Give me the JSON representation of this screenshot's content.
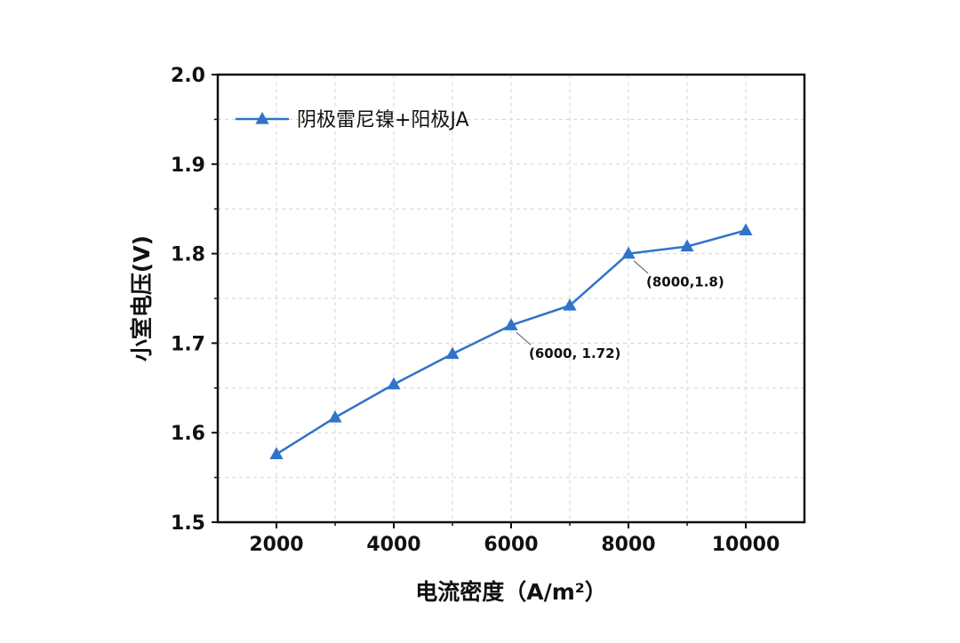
{
  "chart_data": {
    "type": "line",
    "xlabel": "电流密度（A/m²）",
    "ylabel": "小室电压(V)",
    "xlim": [
      1000,
      11000
    ],
    "ylim": [
      1.5,
      2.0
    ],
    "x_ticks": [
      2000,
      4000,
      6000,
      8000,
      10000
    ],
    "x_tick_labels": [
      "2000",
      "4000",
      "6000",
      "8000",
      "10000"
    ],
    "y_ticks": [
      1.5,
      1.6,
      1.7,
      1.8,
      1.9,
      2.0
    ],
    "y_tick_labels": [
      "1.5",
      "1.6",
      "1.7",
      "1.8",
      "1.9",
      "2.0"
    ],
    "grid": true,
    "legend_position": "top-left",
    "series": [
      {
        "name": "阴极雷尼镍+阳极JA",
        "color": "#2f74c8",
        "marker": "triangle",
        "x": [
          2000,
          3000,
          4000,
          5000,
          6000,
          7000,
          8000,
          9000,
          10000
        ],
        "y": [
          1.576,
          1.617,
          1.654,
          1.688,
          1.72,
          1.742,
          1.8,
          1.808,
          1.826
        ]
      }
    ],
    "annotations": [
      {
        "text": "(6000, 1.72)",
        "x": 6000,
        "y": 1.72
      },
      {
        "text": "(8000,1.8)",
        "x": 8000,
        "y": 1.8
      }
    ]
  }
}
